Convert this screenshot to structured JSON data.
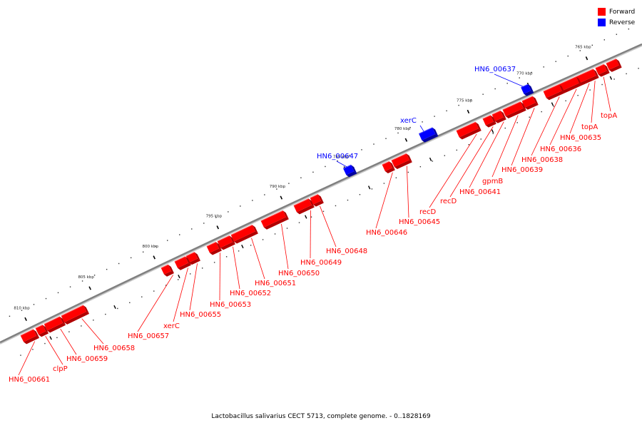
{
  "legend": [
    {
      "label": "Forward",
      "color": "#ff0000"
    },
    {
      "label": "Reverse",
      "color": "#0000ff"
    }
  ],
  "caption": "Lactobacillus salivarius CECT 5713, complete genome. - 0..1828169",
  "colors": {
    "forward": "#ff0000",
    "reverse": "#0000ff",
    "backbone": "#808080",
    "tick": "#000000"
  },
  "scale_ticks": [
    "765 kbp",
    "770 kbp",
    "775 kbp",
    "780 kbp",
    "785 kbp",
    "790 kbp",
    "795 kbp",
    "800 kbp",
    "805 kbp",
    "810 kbp"
  ],
  "genes": [
    {
      "name": "HN6_00637",
      "strand": "reverse"
    },
    {
      "name": "xerC",
      "strand": "reverse"
    },
    {
      "name": "HN6_00647",
      "strand": "reverse"
    },
    {
      "name": "topA",
      "strand": "forward"
    },
    {
      "name": "topA",
      "strand": "forward"
    },
    {
      "name": "HN6_00635",
      "strand": "forward"
    },
    {
      "name": "HN6_00636",
      "strand": "forward"
    },
    {
      "name": "HN6_00638",
      "strand": "forward"
    },
    {
      "name": "HN6_00639",
      "strand": "forward"
    },
    {
      "name": "gpmB",
      "strand": "forward"
    },
    {
      "name": "HN6_00641",
      "strand": "forward"
    },
    {
      "name": "recD",
      "strand": "forward"
    },
    {
      "name": "recD",
      "strand": "forward"
    },
    {
      "name": "HN6_00645",
      "strand": "forward"
    },
    {
      "name": "HN6_00646",
      "strand": "forward"
    },
    {
      "name": "HN6_00648",
      "strand": "forward"
    },
    {
      "name": "HN6_00649",
      "strand": "forward"
    },
    {
      "name": "HN6_00650",
      "strand": "forward"
    },
    {
      "name": "HN6_00651",
      "strand": "forward"
    },
    {
      "name": "HN6_00652",
      "strand": "forward"
    },
    {
      "name": "HN6_00653",
      "strand": "forward"
    },
    {
      "name": "HN6_00655",
      "strand": "forward"
    },
    {
      "name": "xerC",
      "strand": "forward"
    },
    {
      "name": "HN6_00657",
      "strand": "forward"
    },
    {
      "name": "HN6_00658",
      "strand": "forward"
    },
    {
      "name": "HN6_00659",
      "strand": "forward"
    },
    {
      "name": "clpP",
      "strand": "forward"
    },
    {
      "name": "HN6_00661",
      "strand": "forward"
    }
  ]
}
